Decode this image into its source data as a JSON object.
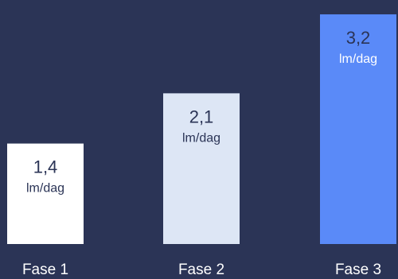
{
  "chart_data": {
    "type": "bar",
    "title": "",
    "xlabel": "",
    "ylabel": "",
    "categories": [
      "Fase 1",
      "Fase 2",
      "Fase 3"
    ],
    "values": [
      1.4,
      2.1,
      3.2
    ],
    "value_labels": [
      "1,4",
      "2,1",
      "3,2"
    ],
    "unit": "lm/dag",
    "ylim": [
      0,
      3.4
    ],
    "grid": false,
    "legend": "none",
    "colors": {
      "background": "#2b3456",
      "bars": [
        "#ffffff",
        "#dde6f5",
        "#5a8af8"
      ],
      "value_text": [
        "#2b3456",
        "#2b3456",
        "#2b3456"
      ],
      "unit_text": [
        "#2b3456",
        "#2b3456",
        "#ffffff"
      ],
      "category_text": "#ffffff"
    }
  }
}
